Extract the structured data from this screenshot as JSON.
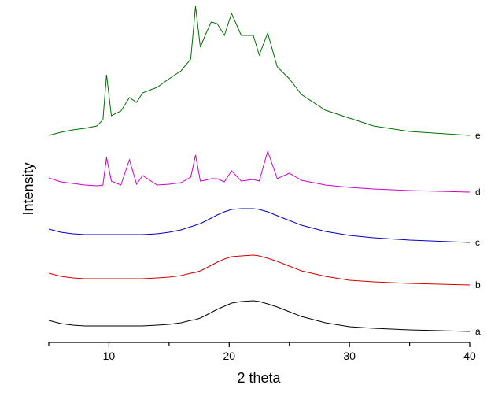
{
  "chart_data": {
    "type": "line",
    "xlabel": "2 theta",
    "ylabel": "Intensity",
    "xlim": [
      5,
      40
    ],
    "xticks": [
      10,
      20,
      30,
      40
    ],
    "xminorticks": [
      5,
      15,
      25,
      35
    ],
    "ylim": [
      0,
      430
    ],
    "x": [
      5,
      6,
      7,
      8,
      9,
      9.5,
      9.8,
      10.2,
      11,
      11.7,
      12.3,
      12.8,
      14,
      15,
      16,
      16.8,
      17.2,
      17.6,
      18,
      18.5,
      19,
      19.6,
      20.2,
      21,
      22,
      22.5,
      23.2,
      24,
      25,
      26,
      28,
      30,
      32,
      35,
      40
    ],
    "series": [
      {
        "name": "a",
        "color": "#000000",
        "values": [
          28,
          24,
          22,
          21,
          21,
          21,
          21,
          21,
          21,
          21,
          21,
          21,
          22,
          23,
          25,
          28,
          29,
          31,
          34,
          38,
          42,
          46,
          50,
          52,
          53,
          52,
          49,
          45,
          39,
          33,
          25,
          20,
          18,
          16,
          14
        ]
      },
      {
        "name": "b",
        "color": "#d40000",
        "values": [
          88,
          84,
          82,
          81,
          81,
          81,
          81,
          81,
          81,
          81,
          81,
          81,
          82,
          83,
          85,
          88,
          89,
          91,
          94,
          98,
          102,
          106,
          109,
          110,
          111,
          110,
          107,
          103,
          97,
          91,
          84,
          79,
          77,
          75,
          73
        ]
      },
      {
        "name": "c",
        "color": "#0000c8",
        "values": [
          144,
          140,
          138,
          137,
          137,
          137,
          137,
          137,
          137,
          137,
          137,
          137,
          138,
          140,
          143,
          147,
          149,
          151,
          154,
          158,
          162,
          166,
          169,
          170,
          170,
          169,
          166,
          161,
          155,
          149,
          141,
          136,
          133,
          130,
          127
        ]
      },
      {
        "name": "d",
        "color": "#cc00cc",
        "values": [
          209,
          204,
          202,
          200,
          199,
          200,
          235,
          205,
          200,
          232,
          201,
          212,
          200,
          201,
          203,
          210,
          238,
          205,
          206,
          208,
          208,
          204,
          218,
          205,
          207,
          205,
          243,
          208,
          215,
          206,
          200,
          197,
          195,
          193,
          191
        ]
      },
      {
        "name": "e",
        "color": "#006e00",
        "values": [
          263,
          267,
          270,
          272,
          275,
          283,
          340,
          288,
          294,
          311,
          305,
          317,
          324,
          335,
          345,
          360,
          427,
          375,
          390,
          407,
          405,
          390,
          418,
          390,
          390,
          365,
          393,
          350,
          335,
          315,
          295,
          285,
          275,
          268,
          263
        ]
      }
    ]
  }
}
